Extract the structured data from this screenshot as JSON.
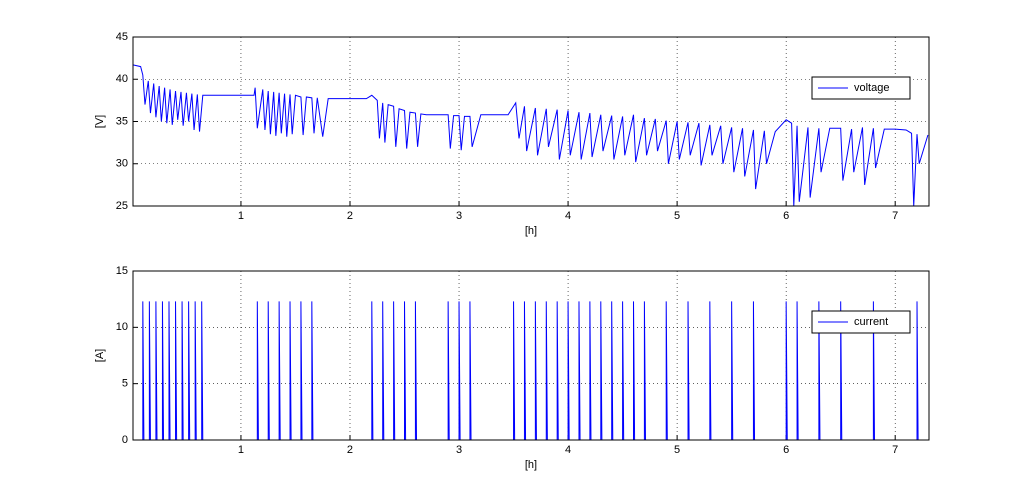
{
  "chart_data": [
    {
      "type": "line",
      "xlabel": "[h]",
      "ylabel": "[V]",
      "xlim": [
        0.01,
        7.31
      ],
      "xticks": [
        1,
        2,
        3,
        4,
        5,
        6,
        7
      ],
      "ylim": [
        25,
        45
      ],
      "yticks": [
        25,
        30,
        35,
        40,
        45
      ],
      "grid": true,
      "legend": "upper right",
      "x": [
        0.01,
        0.08,
        0.1,
        0.12,
        0.15,
        0.17,
        0.2,
        0.22,
        0.25,
        0.27,
        0.3,
        0.32,
        0.35,
        0.37,
        0.4,
        0.42,
        0.45,
        0.47,
        0.5,
        0.52,
        0.55,
        0.57,
        0.6,
        0.62,
        0.65,
        0.7,
        1.12,
        1.13,
        1.15,
        1.2,
        1.22,
        1.25,
        1.27,
        1.3,
        1.32,
        1.35,
        1.37,
        1.4,
        1.42,
        1.45,
        1.47,
        1.5,
        1.55,
        1.57,
        1.6,
        1.65,
        1.67,
        1.7,
        1.75,
        1.8,
        2.15,
        2.2,
        2.25,
        2.27,
        2.3,
        2.32,
        2.35,
        2.4,
        2.42,
        2.45,
        2.5,
        2.52,
        2.55,
        2.6,
        2.62,
        2.65,
        2.7,
        2.9,
        2.92,
        2.95,
        3.0,
        3.02,
        3.05,
        3.1,
        3.12,
        3.2,
        3.45,
        3.5,
        3.52,
        3.55,
        3.6,
        3.62,
        3.7,
        3.72,
        3.8,
        3.82,
        3.9,
        3.92,
        4.0,
        4.02,
        4.1,
        4.12,
        4.2,
        4.22,
        4.3,
        4.32,
        4.4,
        4.42,
        4.5,
        4.52,
        4.6,
        4.62,
        4.7,
        4.72,
        4.8,
        4.82,
        4.9,
        4.92,
        5.0,
        5.02,
        5.1,
        5.12,
        5.2,
        5.22,
        5.3,
        5.32,
        5.4,
        5.42,
        5.5,
        5.52,
        5.6,
        5.62,
        5.7,
        5.72,
        5.8,
        5.82,
        5.9,
        6.0,
        6.05,
        6.07,
        6.1,
        6.12,
        6.2,
        6.22,
        6.3,
        6.32,
        6.4,
        6.5,
        6.52,
        6.6,
        6.62,
        6.7,
        6.72,
        6.8,
        6.82,
        6.9,
        7.0,
        7.1,
        7.15,
        7.17,
        7.2,
        7.22,
        7.3
      ],
      "series": [
        {
          "name": "voltage",
          "color": "#0000ff",
          "values": [
            41.7,
            41.5,
            40.5,
            37,
            39.8,
            36,
            39.5,
            35.5,
            39.2,
            35,
            39,
            34.8,
            38.8,
            34.6,
            38.6,
            35.2,
            38.5,
            34.5,
            38.4,
            35,
            38.3,
            34,
            38.2,
            33.8,
            38.1,
            38.1,
            38.1,
            39,
            34.2,
            38.8,
            34,
            38.6,
            33.5,
            38.5,
            33.3,
            38.4,
            33.6,
            38.3,
            33.2,
            38.2,
            33.5,
            38.1,
            37.9,
            33.4,
            37.9,
            37.8,
            33.6,
            37.8,
            33.2,
            37.7,
            37.7,
            38.1,
            37.5,
            33,
            37.2,
            32.5,
            37,
            36.8,
            32,
            36.5,
            36.3,
            31.8,
            36.1,
            36,
            32,
            35.9,
            35.8,
            35.8,
            31.8,
            35.7,
            35.7,
            31.6,
            35.6,
            35.6,
            32,
            35.8,
            35.8,
            36.8,
            37.2,
            33,
            36.8,
            31.5,
            36.6,
            31,
            36.5,
            32,
            36.4,
            30.5,
            36.3,
            31,
            36.1,
            30.5,
            36,
            30.8,
            35.8,
            31.5,
            35.7,
            30.5,
            35.6,
            31,
            35.8,
            30.2,
            35.4,
            31,
            35.3,
            31.5,
            35.1,
            30,
            35,
            30.5,
            34.9,
            31,
            34.8,
            29.8,
            34.6,
            31,
            34.5,
            30,
            34.3,
            29,
            34.2,
            28.5,
            34,
            27,
            33.9,
            30,
            33.8,
            35.2,
            34.8,
            25,
            34.5,
            25.5,
            34.3,
            26,
            34.2,
            29,
            34.2,
            34.2,
            28,
            34.1,
            29,
            34.3,
            27.5,
            34.2,
            29.5,
            34.1,
            34.1,
            34,
            33.6,
            25,
            33.5,
            30,
            33.4
          ]
        }
      ]
    },
    {
      "type": "line",
      "xlabel": "[h]",
      "ylabel": "[A]",
      "xlim": [
        0.01,
        7.31
      ],
      "xticks": [
        1,
        2,
        3,
        4,
        5,
        6,
        7
      ],
      "ylim": [
        0,
        15
      ],
      "yticks": [
        0,
        5,
        10,
        15
      ],
      "grid": true,
      "legend": "upper right",
      "x": [
        0.01,
        0.1,
        0.1,
        0.11,
        0.16,
        0.16,
        0.17,
        0.22,
        0.22,
        0.23,
        0.28,
        0.28,
        0.29,
        0.34,
        0.34,
        0.35,
        0.4,
        0.4,
        0.41,
        0.46,
        0.46,
        0.47,
        0.52,
        0.52,
        0.53,
        0.58,
        0.58,
        0.59,
        0.64,
        0.64,
        0.65,
        1.15,
        1.15,
        1.16,
        1.25,
        1.25,
        1.26,
        1.35,
        1.35,
        1.36,
        1.45,
        1.45,
        1.46,
        1.55,
        1.55,
        1.56,
        1.65,
        1.65,
        1.66,
        2.2,
        2.2,
        2.21,
        2.3,
        2.3,
        2.31,
        2.4,
        2.4,
        2.41,
        2.5,
        2.5,
        2.51,
        2.6,
        2.6,
        2.61,
        2.9,
        2.9,
        2.91,
        3.0,
        3.0,
        3.01,
        3.1,
        3.1,
        3.11,
        3.5,
        3.5,
        3.51,
        3.6,
        3.6,
        3.61,
        3.7,
        3.7,
        3.71,
        3.8,
        3.8,
        3.81,
        3.9,
        3.9,
        3.91,
        4.0,
        4.0,
        4.01,
        4.1,
        4.1,
        4.11,
        4.2,
        4.2,
        4.21,
        4.3,
        4.3,
        4.31,
        4.4,
        4.4,
        4.41,
        4.5,
        4.5,
        4.51,
        4.6,
        4.6,
        4.61,
        4.7,
        4.7,
        4.71,
        4.9,
        4.9,
        4.91,
        5.1,
        5.1,
        5.11,
        5.3,
        5.3,
        5.31,
        5.5,
        5.5,
        5.51,
        5.7,
        5.7,
        5.71,
        6.0,
        6.0,
        6.01,
        6.1,
        6.1,
        6.11,
        6.3,
        6.3,
        6.31,
        6.5,
        6.5,
        6.51,
        6.8,
        6.8,
        6.81,
        7.2,
        7.2,
        7.21,
        7.3
      ],
      "series": [
        {
          "name": "current",
          "color": "#0000ff",
          "values": [
            0,
            0,
            12.3,
            0,
            0,
            12.3,
            0,
            0,
            12.3,
            0,
            0,
            12.3,
            0,
            0,
            12.3,
            0,
            0,
            12.3,
            0,
            0,
            12.3,
            0,
            0,
            12.3,
            0,
            0,
            12.3,
            0,
            0,
            12.3,
            0,
            0,
            12.3,
            0,
            0,
            12.3,
            0,
            0,
            12.3,
            0,
            0,
            12.3,
            0,
            0,
            12.3,
            0,
            0,
            12.3,
            0,
            0,
            12.3,
            0,
            0,
            12.3,
            0,
            0,
            12.3,
            0,
            0,
            12.3,
            0,
            0,
            12.3,
            0,
            0,
            12.3,
            0,
            0,
            12.3,
            0,
            0,
            12.3,
            0,
            0,
            12.3,
            0,
            0,
            12.3,
            0,
            0,
            12.3,
            0,
            0,
            12.3,
            0,
            0,
            12.3,
            0,
            0,
            12.3,
            0,
            0,
            12.3,
            0,
            0,
            12.3,
            0,
            0,
            12.3,
            0,
            0,
            12.3,
            0,
            0,
            12.3,
            0,
            0,
            12.3,
            0,
            0,
            12.3,
            0,
            0,
            12.3,
            0,
            0,
            12.3,
            0,
            0,
            12.3,
            0,
            0,
            12.3,
            0,
            0,
            12.3,
            0,
            0,
            12.3,
            0,
            0,
            12.3,
            0,
            0,
            12.3,
            0,
            0,
            12.3,
            0,
            0,
            12.3,
            0,
            0,
            12.3,
            0,
            0
          ]
        }
      ]
    }
  ]
}
